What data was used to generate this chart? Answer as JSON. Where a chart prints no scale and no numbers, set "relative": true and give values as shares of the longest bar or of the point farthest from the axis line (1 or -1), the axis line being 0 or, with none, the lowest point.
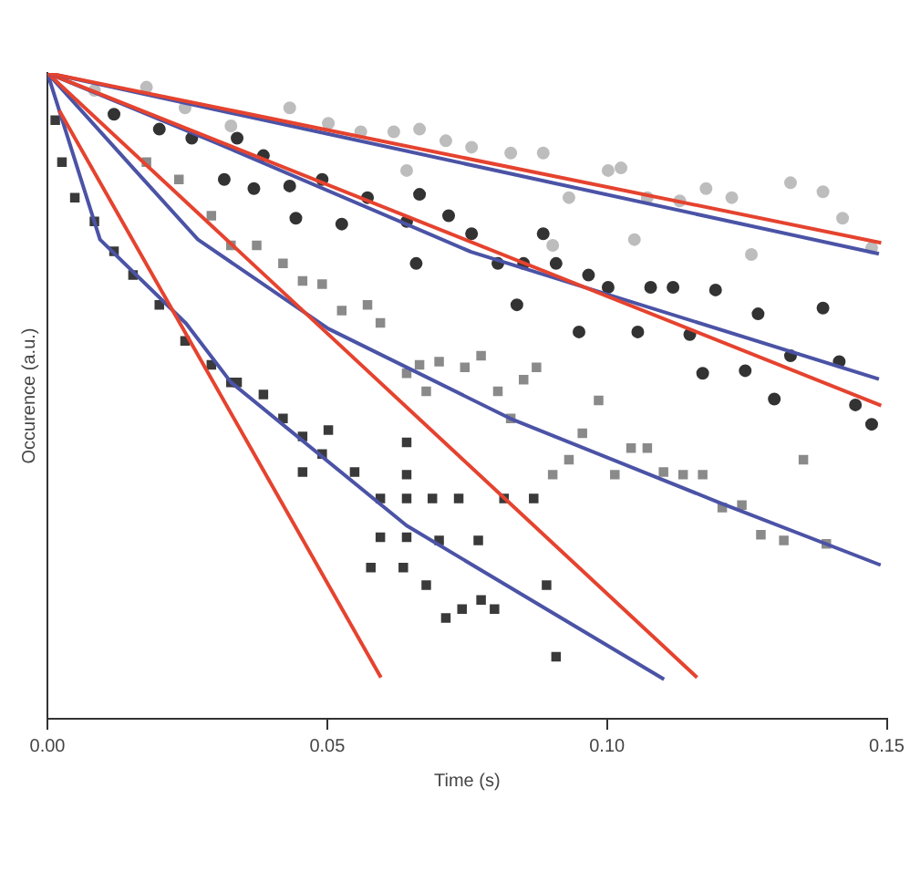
{
  "chart_data": {
    "type": "scatter",
    "xlabel": "Time (s)",
    "ylabel": "Occurence (a.u.)",
    "relative": true,
    "legend": false,
    "grid": false,
    "xlim": [
      0,
      0.15
    ],
    "xticks": [
      {
        "value": 0,
        "label": "0.00"
      },
      {
        "value": 0.05,
        "label": "0.05"
      },
      {
        "value": 0.1,
        "label": "0.10"
      },
      {
        "value": 0.15,
        "label": "0.15"
      }
    ],
    "series": [
      {
        "marker": "circle",
        "color": "#bdbdbd",
        "x": [
          0.0084,
          0.0177,
          0.0246,
          0.0328,
          0.0433,
          0.0502,
          0.056,
          0.0619,
          0.0665,
          0.0712,
          0.0758,
          0.0828,
          0.0886,
          0.0932,
          0.1002,
          0.1025,
          0.1072,
          0.113,
          0.1177,
          0.1223,
          0.1258,
          0.1328,
          0.1386,
          0.1421,
          0.1473,
          0.1049,
          0.0903,
          0.0642
        ],
        "values": [
          0.973,
          0.978,
          0.946,
          0.918,
          0.946,
          0.922,
          0.909,
          0.909,
          0.913,
          0.895,
          0.885,
          0.876,
          0.876,
          0.807,
          0.849,
          0.853,
          0.807,
          0.802,
          0.821,
          0.807,
          0.719,
          0.83,
          0.816,
          0.775,
          0.729,
          0.742,
          0.733,
          0.849
        ]
      },
      {
        "marker": "circle",
        "color": "#333333",
        "x": [
          0.0119,
          0.02,
          0.0258,
          0.0339,
          0.0386,
          0.0433,
          0.0491,
          0.0572,
          0.0642,
          0.0665,
          0.0717,
          0.0758,
          0.0805,
          0.0851,
          0.0886,
          0.0909,
          0.0967,
          0.1002,
          0.1078,
          0.1118,
          0.1194,
          0.127,
          0.1386,
          0.1415,
          0.1328,
          0.0316,
          0.0369,
          0.0444,
          0.0526,
          0.0659,
          0.0839,
          0.095,
          0.1055,
          0.1148,
          0.1171,
          0.1247,
          0.1299,
          0.1444,
          0.1473
        ],
        "values": [
          0.936,
          0.913,
          0.899,
          0.899,
          0.872,
          0.825,
          0.835,
          0.807,
          0.77,
          0.812,
          0.779,
          0.751,
          0.705,
          0.705,
          0.751,
          0.705,
          0.687,
          0.668,
          0.668,
          0.668,
          0.664,
          0.627,
          0.636,
          0.553,
          0.562,
          0.835,
          0.821,
          0.775,
          0.766,
          0.705,
          0.641,
          0.599,
          0.599,
          0.595,
          0.535,
          0.539,
          0.495,
          0.486,
          0.456
        ]
      },
      {
        "marker": "square",
        "color": "#8a8a8a",
        "x": [
          0.0177,
          0.0235,
          0.0293,
          0.0328,
          0.0374,
          0.0421,
          0.0456,
          0.0491,
          0.0526,
          0.0572,
          0.0595,
          0.0642,
          0.0665,
          0.07,
          0.0746,
          0.0775,
          0.0805,
          0.0828,
          0.0851,
          0.0874,
          0.0677,
          0.0903,
          0.0932,
          0.0956,
          0.0985,
          0.1014,
          0.1043,
          0.1072,
          0.1101,
          0.1136,
          0.1171,
          0.1206,
          0.1241,
          0.1275,
          0.1316,
          0.1351,
          0.1392
        ],
        "values": [
          0.862,
          0.835,
          0.779,
          0.733,
          0.733,
          0.705,
          0.678,
          0.673,
          0.632,
          0.641,
          0.613,
          0.535,
          0.548,
          0.553,
          0.544,
          0.562,
          0.507,
          0.465,
          0.525,
          0.544,
          0.507,
          0.378,
          0.401,
          0.442,
          0.493,
          0.378,
          0.419,
          0.419,
          0.382,
          0.378,
          0.378,
          0.327,
          0.331,
          0.285,
          0.276,
          0.401,
          0.271
        ]
      },
      {
        "marker": "square",
        "color": "#3a3a3a",
        "x": [
          0.0014,
          0.0026,
          0.0049,
          0.0084,
          0.0119,
          0.0153,
          0.02,
          0.0246,
          0.0293,
          0.0339,
          0.0328,
          0.0386,
          0.0421,
          0.0456,
          0.0502,
          0.0491,
          0.0549,
          0.0595,
          0.0642,
          0.0688,
          0.0735,
          0.0816,
          0.0869,
          0.0595,
          0.0642,
          0.07,
          0.077,
          0.0578,
          0.0636,
          0.0677,
          0.0712,
          0.0741,
          0.0775,
          0.0799,
          0.0892,
          0.0909,
          0.0642,
          0.0642,
          0.0456
        ],
        "values": [
          0.927,
          0.862,
          0.807,
          0.77,
          0.724,
          0.687,
          0.641,
          0.585,
          0.548,
          0.521,
          0.521,
          0.502,
          0.465,
          0.437,
          0.447,
          0.41,
          0.382,
          0.341,
          0.341,
          0.341,
          0.341,
          0.341,
          0.341,
          0.281,
          0.281,
          0.276,
          0.276,
          0.234,
          0.234,
          0.207,
          0.156,
          0.17,
          0.184,
          0.17,
          0.207,
          0.096,
          0.428,
          0.378,
          0.382
        ]
      },
      {
        "type": "line",
        "color": "#e5432f",
        "x": [
          0,
          0.149
        ],
        "values": [
          1,
          0.737
        ]
      },
      {
        "type": "line",
        "color": "#4b53a6",
        "x": [
          0,
          0.1486
        ],
        "values": [
          1,
          0.72
        ]
      },
      {
        "type": "line",
        "color": "#e5432f",
        "x": [
          0,
          0.149
        ],
        "values": [
          1,
          0.485
        ]
      },
      {
        "type": "line",
        "color": "#4b53a6",
        "x": [
          0,
          0.0293,
          0.0757,
          0.1486
        ],
        "values": [
          1,
          0.895,
          0.723,
          0.526
        ]
      },
      {
        "type": "line",
        "color": "#e5432f",
        "x": [
          0,
          0.1161
        ],
        "values": [
          1,
          0.064
        ]
      },
      {
        "type": "line",
        "color": "#4b53a6",
        "x": [
          0,
          0.0153,
          0.0269,
          0.0502,
          0.0827,
          0.12,
          0.1489
        ],
        "values": [
          1,
          0.853,
          0.742,
          0.604,
          0.465,
          0.335,
          0.238
        ]
      },
      {
        "type": "line",
        "color": "#e5432f",
        "x": [
          0.0021,
          0.0596
        ],
        "values": [
          0.942,
          0.064
        ]
      },
      {
        "type": "line",
        "color": "#4b53a6",
        "x": [
          0,
          0.0094,
          0.0248,
          0.0328,
          0.0642,
          0.1102
        ],
        "values": [
          1,
          0.742,
          0.612,
          0.521,
          0.299,
          0.061
        ]
      }
    ]
  }
}
